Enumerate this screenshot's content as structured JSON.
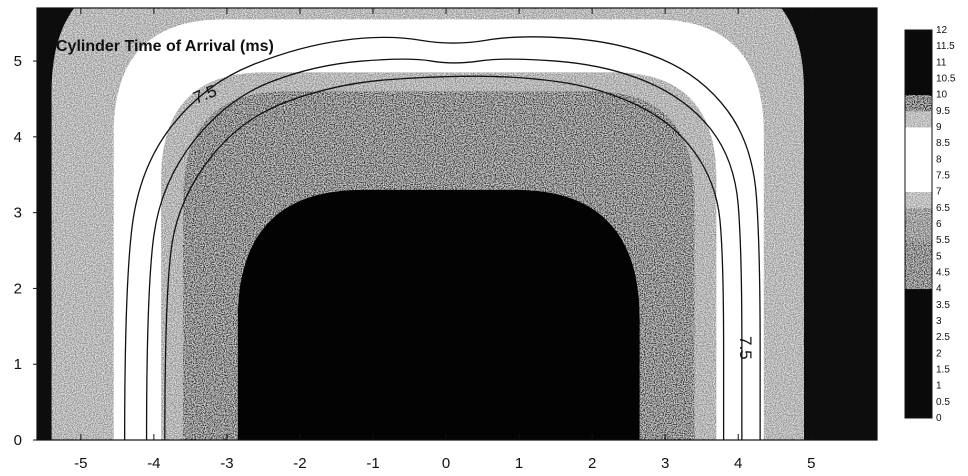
{
  "chart_data": {
    "type": "contour",
    "title": "Cylinder Time of Arrival (ms)",
    "xlabel": "",
    "ylabel": "",
    "xlim": [
      -5.6,
      5.9
    ],
    "ylim": [
      0,
      5.7
    ],
    "x_ticks": [
      -5,
      -4,
      -3,
      -2,
      -1,
      0,
      1,
      2,
      3,
      4,
      5
    ],
    "x_tick_labels": [
      "-5",
      "-4",
      "-3",
      "-2",
      "-1",
      "0",
      "1",
      "2",
      "3",
      "4",
      "5"
    ],
    "y_ticks": [
      0,
      1,
      2,
      3,
      4,
      5
    ],
    "y_tick_labels": [
      "0",
      "1",
      "2",
      "3",
      "4",
      "5"
    ],
    "colorbar": {
      "min": 0,
      "max": 12,
      "levels": [
        0,
        0.5,
        1,
        1.5,
        2,
        2.5,
        3,
        3.5,
        4,
        4.5,
        5,
        5.5,
        6,
        6.5,
        7,
        7.5,
        8,
        8.5,
        9,
        9.5,
        10,
        10.5,
        11,
        11.5,
        12
      ],
      "labels": [
        "0",
        "0.5",
        "1",
        "1.5",
        "2",
        "2.5",
        "3",
        "3.5",
        "4",
        "4.5",
        "5",
        "5.5",
        "6",
        "6.5",
        "7",
        "7.5",
        "8",
        "8.5",
        "9",
        "9.5",
        "10",
        "10.5",
        "11",
        "11.5",
        "12"
      ]
    },
    "contour_lines": [
      {
        "level": 7,
        "points": [
          [
            -4.4,
            0
          ],
          [
            -4.4,
            2.0
          ],
          [
            -4.2,
            3.6
          ],
          [
            -3.3,
            4.7
          ],
          [
            -2.0,
            5.2
          ],
          [
            -0.8,
            5.35
          ],
          [
            0.1,
            5.2
          ],
          [
            1.0,
            5.35
          ],
          [
            2.4,
            5.25
          ],
          [
            3.5,
            4.8
          ],
          [
            4.2,
            3.9
          ],
          [
            4.3,
            2.5
          ],
          [
            4.3,
            0
          ]
        ]
      },
      {
        "level": 7.5,
        "points": [
          [
            -4.1,
            0
          ],
          [
            -4.1,
            2.0
          ],
          [
            -3.9,
            3.4
          ],
          [
            -3.0,
            4.5
          ],
          [
            -1.8,
            4.95
          ],
          [
            -0.5,
            5.05
          ],
          [
            0.1,
            4.95
          ],
          [
            0.8,
            5.05
          ],
          [
            2.2,
            4.95
          ],
          [
            3.3,
            4.5
          ],
          [
            3.95,
            3.7
          ],
          [
            4.05,
            2.5
          ],
          [
            4.05,
            0
          ]
        ],
        "label": "7.5"
      },
      {
        "level": 8,
        "points": [
          [
            -3.85,
            0
          ],
          [
            -3.85,
            2.0
          ],
          [
            -3.65,
            3.2
          ],
          [
            -2.8,
            4.25
          ],
          [
            -1.5,
            4.7
          ],
          [
            -0.2,
            4.8
          ],
          [
            1.0,
            4.8
          ],
          [
            2.1,
            4.65
          ],
          [
            3.1,
            4.2
          ],
          [
            3.7,
            3.4
          ],
          [
            3.8,
            2.4
          ],
          [
            3.8,
            0
          ]
        ]
      }
    ],
    "contour_label_text": "7.5",
    "regions": [
      {
        "level_range": [
          10,
          12
        ],
        "shade": "#101010",
        "location": "outer"
      },
      {
        "level_range": [
          9,
          10
        ],
        "shade": "#b0b0b0",
        "location": "outer band"
      },
      {
        "level_range": [
          7,
          9
        ],
        "shade": "#ffffff",
        "location": "white ring"
      },
      {
        "level_range": [
          6,
          7
        ],
        "shade": "#9a9a9a",
        "location": "inner gray band"
      },
      {
        "level_range": [
          4.5,
          6
        ],
        "shade": "#3a3a3a",
        "location": "speckled band"
      },
      {
        "level_range": [
          0,
          4.5
        ],
        "shade": "#050505",
        "location": "core"
      }
    ]
  }
}
